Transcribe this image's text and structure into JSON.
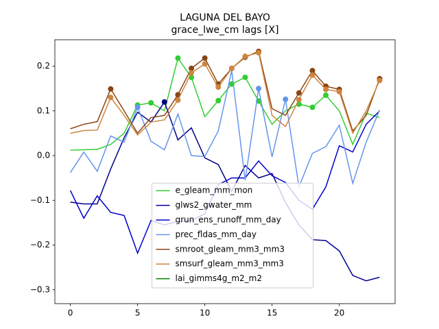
{
  "chart_data": {
    "type": "line",
    "title": "LAGUNA DEL BAYO",
    "subtitle": "grace_lwe_cm lags [X]",
    "x": [
      0,
      1,
      2,
      3,
      4,
      5,
      6,
      7,
      8,
      9,
      10,
      11,
      12,
      13,
      14,
      15,
      16,
      17,
      18,
      19,
      20,
      21,
      22,
      23
    ],
    "xlim": [
      -1.15,
      24.15
    ],
    "xticks": [
      0,
      5,
      10,
      15,
      20
    ],
    "ylim": [
      -0.331,
      0.259
    ],
    "yticks": [
      {
        "value": -0.3,
        "label": "−0.3"
      },
      {
        "value": -0.2,
        "label": "−0.2"
      },
      {
        "value": -0.1,
        "label": "−0.1"
      },
      {
        "value": 0.0,
        "label": "0.0"
      },
      0.1,
      0.2
    ],
    "legend": "lower center",
    "series": [
      {
        "name": "e_gleam_mm_mon",
        "color": "#32cd32",
        "values": [
          0.012,
          0.013,
          0.014,
          0.025,
          0.05,
          0.113,
          0.118,
          0.1,
          0.218,
          0.175,
          0.087,
          0.123,
          0.16,
          0.175,
          0.122,
          0.07,
          0.1,
          0.115,
          0.108,
          0.135,
          0.1,
          0.025,
          0.095,
          0.085
        ],
        "markers": [
          5,
          6,
          8,
          9,
          11,
          12,
          13,
          14,
          17,
          18,
          19
        ]
      },
      {
        "name": "glws2_gwater_mm",
        "color": "#00008b",
        "values": [
          -0.104,
          -0.108,
          -0.108,
          -0.03,
          0.04,
          0.097,
          0.075,
          0.12,
          0.035,
          0.062,
          -0.005,
          -0.02,
          -0.08,
          -0.022,
          -0.05,
          -0.04,
          -0.105,
          -0.155,
          -0.188,
          -0.19,
          -0.213,
          -0.268,
          -0.28,
          -0.272
        ],
        "markers": [
          7
        ]
      },
      {
        "name": "grun_ens_runoff_mm_day",
        "color": "#0000cd",
        "values": [
          -0.078,
          -0.14,
          -0.09,
          -0.127,
          -0.134,
          -0.218,
          -0.145,
          -0.155,
          -0.147,
          -0.145,
          -0.13,
          -0.065,
          -0.05,
          -0.05,
          -0.012,
          -0.045,
          -0.06,
          -0.1,
          -0.12,
          -0.07,
          0.022,
          0.008,
          0.07,
          0.1
        ],
        "markers": []
      },
      {
        "name": "prec_fldas_mm_day",
        "color": "#6495ed",
        "values": [
          -0.038,
          0.008,
          -0.035,
          0.044,
          0.03,
          0.108,
          0.032,
          0.013,
          0.093,
          0.0,
          -0.002,
          0.055,
          0.19,
          -0.055,
          0.15,
          -0.003,
          0.126,
          -0.07,
          0.005,
          0.02,
          0.068,
          -0.062,
          0.03,
          0.102
        ],
        "markers": [
          5,
          14,
          16
        ]
      },
      {
        "name": "smroot_gleam_mm3_mm3",
        "color": "#8b4513",
        "values": [
          0.06,
          0.07,
          0.076,
          0.149,
          0.1,
          0.05,
          0.085,
          0.09,
          0.136,
          0.195,
          0.218,
          0.16,
          0.195,
          0.22,
          0.233,
          0.105,
          0.09,
          0.14,
          0.19,
          0.155,
          0.148,
          0.055,
          0.09,
          0.172
        ],
        "markers": [
          3,
          8,
          9,
          10,
          11,
          12,
          13,
          14,
          17,
          18,
          19,
          20,
          23
        ]
      },
      {
        "name": "smsurf_gleam_mm3_mm3",
        "color": "#cd853f",
        "values": [
          0.05,
          0.056,
          0.057,
          0.13,
          0.09,
          0.046,
          0.075,
          0.08,
          0.124,
          0.185,
          0.205,
          0.153,
          0.195,
          0.222,
          0.23,
          0.09,
          0.065,
          0.125,
          0.18,
          0.148,
          0.143,
          0.05,
          0.1,
          0.168
        ],
        "markers": [
          3,
          8,
          9,
          10,
          11,
          12,
          13,
          14,
          17,
          18,
          19,
          20,
          23
        ]
      },
      {
        "name": "lai_gimms4g_m2_m2",
        "color": "#008000",
        "values": [
          null,
          null,
          null,
          null,
          null,
          null,
          null,
          null,
          null,
          null,
          null,
          null,
          null,
          null,
          null,
          null,
          null,
          null,
          null,
          null,
          null,
          null,
          null,
          null
        ],
        "markers": []
      }
    ]
  }
}
